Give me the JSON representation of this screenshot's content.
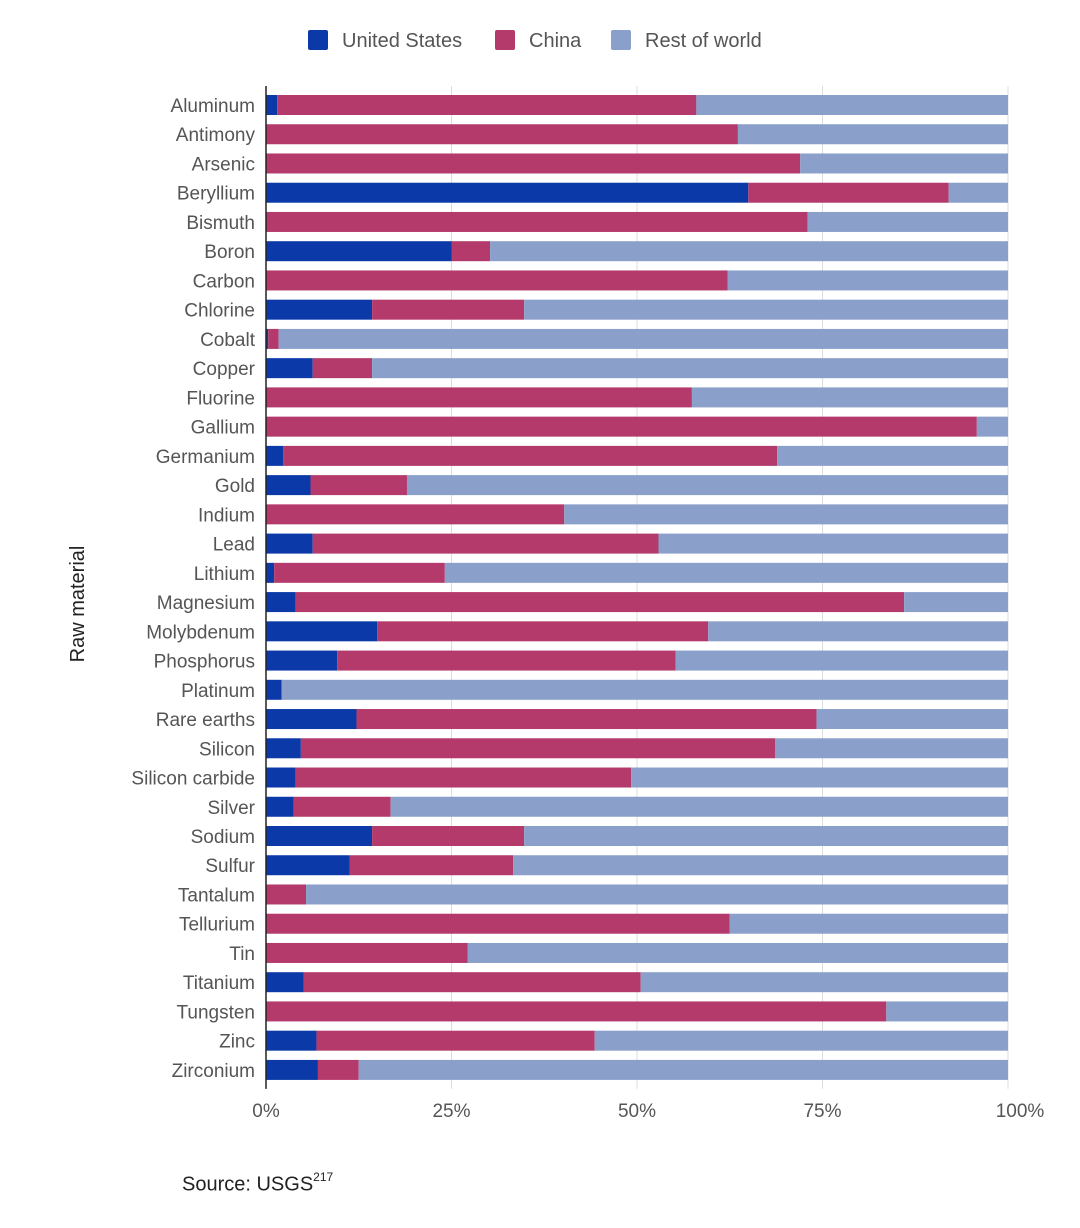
{
  "chart_data": {
    "type": "bar",
    "orientation": "horizontal",
    "stacked": "percent",
    "ylabel": "Raw material",
    "xlabel": "",
    "xlim": [
      0,
      100
    ],
    "x_ticks": [
      "0%",
      "25%",
      "50%",
      "75%",
      "100%"
    ],
    "grid": true,
    "legend_position": "top-center",
    "categories": [
      "Aluminum",
      "Antimony",
      "Arsenic",
      "Beryllium",
      "Bismuth",
      "Boron",
      "Carbon",
      "Chlorine",
      "Cobalt",
      "Copper",
      "Fluorine",
      "Gallium",
      "Germanium",
      "Gold",
      "Indium",
      "Lead",
      "Lithium",
      "Magnesium",
      "Molybdenum",
      "Phosphorus",
      "Platinum",
      "Rare earths",
      "Silicon",
      "Silicon carbide",
      "Silver",
      "Sodium",
      "Sulfur",
      "Tantalum",
      "Tellurium",
      "Tin",
      "Titanium",
      "Tungsten",
      "Zinc",
      "Zirconium"
    ],
    "series": [
      {
        "name": "United States",
        "color": "#0b3aa8",
        "values": [
          1.5,
          0,
          0,
          65,
          0,
          25,
          0,
          14.3,
          0.3,
          6.3,
          0,
          0,
          2.3,
          6,
          0,
          6.3,
          1.1,
          4,
          15,
          9.6,
          2.1,
          12.2,
          4.7,
          4,
          3.7,
          14.3,
          11.3,
          0,
          0,
          0,
          5.1,
          0,
          6.8,
          7
        ]
      },
      {
        "name": "China",
        "color": "#b43a6b",
        "values": [
          56.5,
          63.6,
          72,
          27,
          73,
          5.2,
          62.2,
          20.5,
          1.4,
          8,
          57.4,
          95.8,
          66.6,
          13,
          40.2,
          46.6,
          23,
          82,
          44.6,
          45.6,
          0,
          62,
          63.9,
          45.2,
          13.1,
          20.5,
          22,
          5.4,
          62.5,
          27.2,
          45.4,
          83.6,
          37.5,
          5.5
        ]
      },
      {
        "name": "Rest of world",
        "color": "#8aa0cb",
        "values": [
          42,
          36.4,
          28,
          8,
          27,
          69.8,
          37.8,
          65.2,
          98.3,
          85.7,
          42.6,
          4.2,
          31.1,
          81,
          59.8,
          47.1,
          75.9,
          14,
          40.4,
          44.8,
          97.9,
          25.8,
          31.4,
          50.8,
          83.2,
          65.2,
          66.7,
          94.6,
          37.5,
          72.8,
          49.5,
          16.4,
          55.7,
          87.5
        ]
      }
    ]
  },
  "source": {
    "text": "Source: USGS",
    "sup": "217"
  }
}
